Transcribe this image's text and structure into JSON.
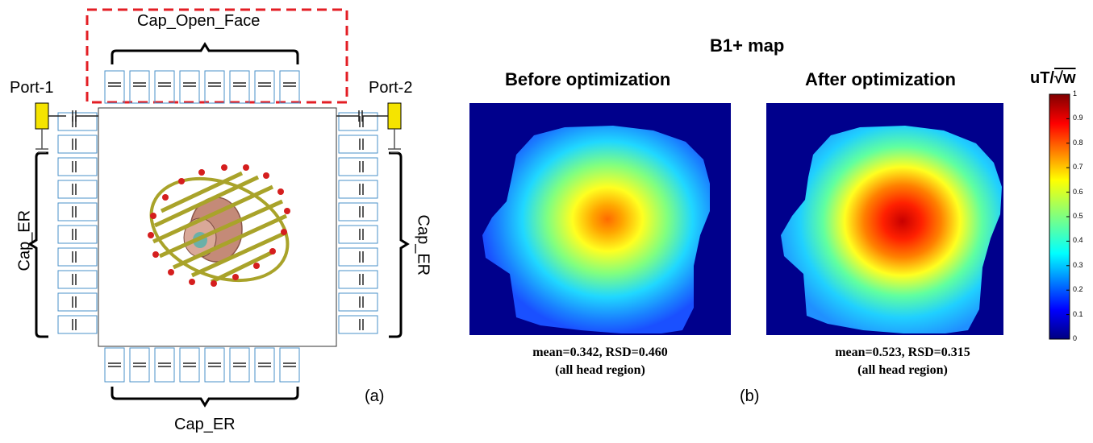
{
  "panel_a": {
    "top_label": "Cap_Open_Face",
    "bottom_label": "Cap_ER",
    "left_label": "Cap_ER",
    "right_label": "Cap_ER",
    "port1": "Port-1",
    "port2": "Port-2",
    "caption": "(a)"
  },
  "panel_b": {
    "title": "B1+ map",
    "before_title": "Before optimization",
    "after_title": "After optimization",
    "before_stats_line1": "mean=0.342, RSD=0.460",
    "before_stats_line2": "(all head region)",
    "after_stats_line1": "mean=0.523, RSD=0.315",
    "after_stats_line2": "(all head region)",
    "caption": "(b)"
  },
  "colorbar": {
    "unit_prefix": "uT/",
    "unit_sqrt": "√w",
    "ticks": [
      "1",
      "0.9",
      "0.8",
      "0.7",
      "0.6",
      "0.5",
      "0.4",
      "0.3",
      "0.2",
      "0.1",
      "0"
    ]
  }
}
